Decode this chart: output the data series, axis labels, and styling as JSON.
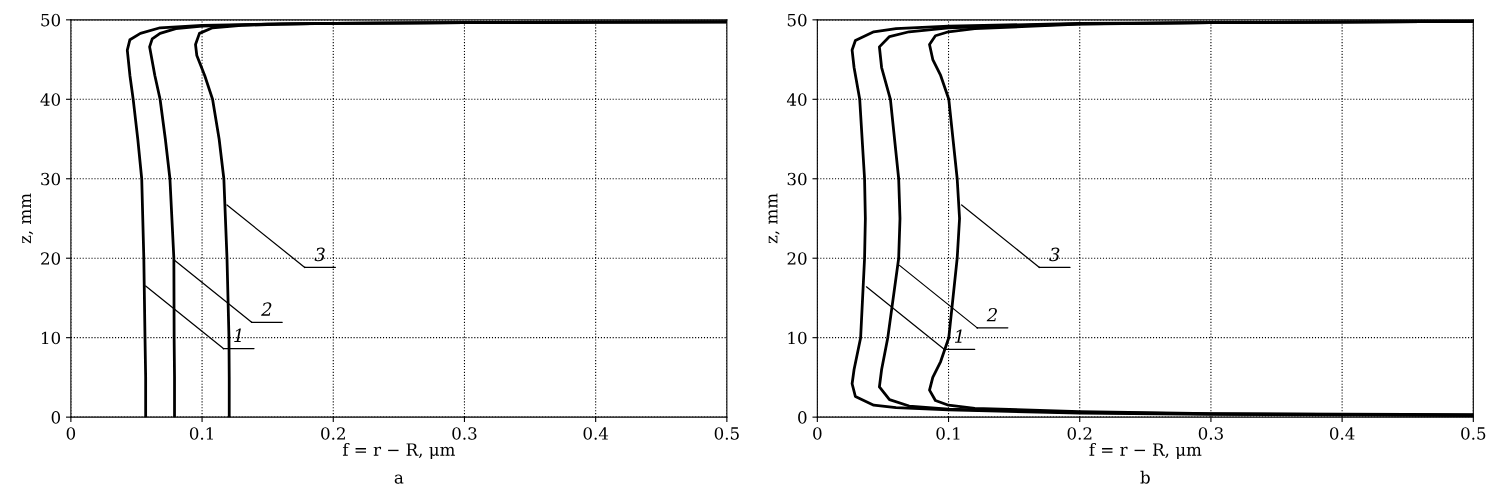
{
  "chart_data": [
    {
      "type": "line",
      "xlabel": "f = r − R, μm",
      "ylabel": "z, mm",
      "xlim": [
        0,
        0.5
      ],
      "ylim": [
        0,
        50
      ],
      "xticks": [
        0,
        0.1,
        0.2,
        0.3,
        0.4,
        0.5
      ],
      "yticks": [
        0,
        10,
        20,
        30,
        40,
        50
      ],
      "grid": true,
      "legend": false,
      "marker": "none",
      "line_style": "solid",
      "series": [
        {
          "color": "#000000",
          "x": [
            0.057,
            0.057,
            0.0565,
            0.0556,
            0.054,
            0.051,
            0.0475,
            0.045,
            0.043,
            0.045,
            0.053,
            0.068,
            0.1,
            0.15,
            0.2,
            0.3,
            0.4,
            0.5
          ],
          "values": [
            0,
            5,
            10,
            20,
            30,
            35,
            40,
            43,
            46.2,
            47.5,
            48.3,
            49,
            49.3,
            49.45,
            49.55,
            49.65,
            49.7,
            49.75
          ]
        },
        {
          "color": "#000000",
          "x": [
            0.079,
            0.079,
            0.0787,
            0.0785,
            0.0755,
            0.072,
            0.068,
            0.064,
            0.06,
            0.062,
            0.068,
            0.08,
            0.1,
            0.15,
            0.2,
            0.3,
            0.4,
            0.5
          ],
          "values": [
            0,
            5,
            10,
            20,
            30,
            35,
            40,
            43,
            46.6,
            47.6,
            48.3,
            48.9,
            49.2,
            49.45,
            49.55,
            49.65,
            49.7,
            49.75
          ]
        },
        {
          "color": "#000000",
          "x": [
            0.1207,
            0.1207,
            0.1205,
            0.119,
            0.1166,
            0.113,
            0.108,
            0.102,
            0.096,
            0.095,
            0.098,
            0.108,
            0.13,
            0.16,
            0.2,
            0.3,
            0.4,
            0.5
          ],
          "values": [
            0,
            5,
            10,
            20,
            30,
            35,
            40,
            43,
            45.5,
            46.9,
            48.3,
            49,
            49.3,
            49.45,
            49.55,
            49.65,
            49.7,
            49.75
          ]
        }
      ],
      "annotations": [
        {
          "text": "1",
          "x": 0.057,
          "y": 16.5
        },
        {
          "text": "2",
          "x": 0.0785,
          "y": 19.8
        },
        {
          "text": "3",
          "x": 0.119,
          "y": 26.7
        },
        "a"
      ]
    },
    {
      "type": "line",
      "xlabel": "f = r − R, μm",
      "ylabel": "z, mm",
      "xlim": [
        0,
        0.5
      ],
      "ylim": [
        0,
        50
      ],
      "xticks": [
        0,
        0.1,
        0.2,
        0.3,
        0.4,
        0.5
      ],
      "yticks": [
        0,
        10,
        20,
        30,
        40,
        50
      ],
      "grid": true,
      "legend": false,
      "marker": "none",
      "line_style": "solid",
      "series": [
        {
          "color": "#000000",
          "x": [
            0.5,
            0.3,
            0.2,
            0.1,
            0.06,
            0.043,
            0.029,
            0.0265,
            0.028,
            0.033,
            0.036,
            0.0366,
            0.036,
            0.0323,
            0.028,
            0.0265,
            0.029,
            0.043,
            0.06,
            0.1,
            0.2,
            0.3,
            0.5
          ],
          "values": [
            0.2,
            0.35,
            0.5,
            0.9,
            1.2,
            1.5,
            2.6,
            4.2,
            6,
            10,
            20,
            25,
            30,
            40,
            44,
            46.2,
            47.4,
            48.5,
            48.9,
            49.2,
            49.55,
            49.65,
            49.8
          ]
        },
        {
          "color": "#000000",
          "x": [
            0.5,
            0.3,
            0.2,
            0.1,
            0.07,
            0.055,
            0.0473,
            0.049,
            0.0537,
            0.062,
            0.063,
            0.062,
            0.0557,
            0.049,
            0.0473,
            0.055,
            0.07,
            0.1,
            0.2,
            0.3,
            0.5
          ],
          "values": [
            0.25,
            0.4,
            0.6,
            1.0,
            1.4,
            2.2,
            3.8,
            6,
            10,
            20,
            25,
            30,
            40,
            44,
            46.6,
            47.9,
            48.5,
            49.0,
            49.5,
            49.65,
            49.8
          ]
        },
        {
          "color": "#000000",
          "x": [
            0.5,
            0.3,
            0.2,
            0.12,
            0.1,
            0.09,
            0.0855,
            0.088,
            0.094,
            0.1002,
            0.1066,
            0.1084,
            0.1066,
            0.1002,
            0.094,
            0.088,
            0.0855,
            0.09,
            0.1,
            0.12,
            0.2,
            0.3,
            0.5
          ],
          "values": [
            0.3,
            0.45,
            0.7,
            1.1,
            1.5,
            2.1,
            3.4,
            5,
            7,
            10,
            20,
            25,
            30,
            40,
            43,
            45,
            46.9,
            48,
            48.5,
            48.9,
            49.45,
            49.65,
            49.8
          ]
        }
      ],
      "annotations": [
        {
          "text": "1",
          "x": 0.0374,
          "y": 16.4
        },
        {
          "text": "2",
          "x": 0.0626,
          "y": 19.1
        },
        {
          "text": "3",
          "x": 0.11,
          "y": 26.7
        },
        "b"
      ]
    }
  ]
}
